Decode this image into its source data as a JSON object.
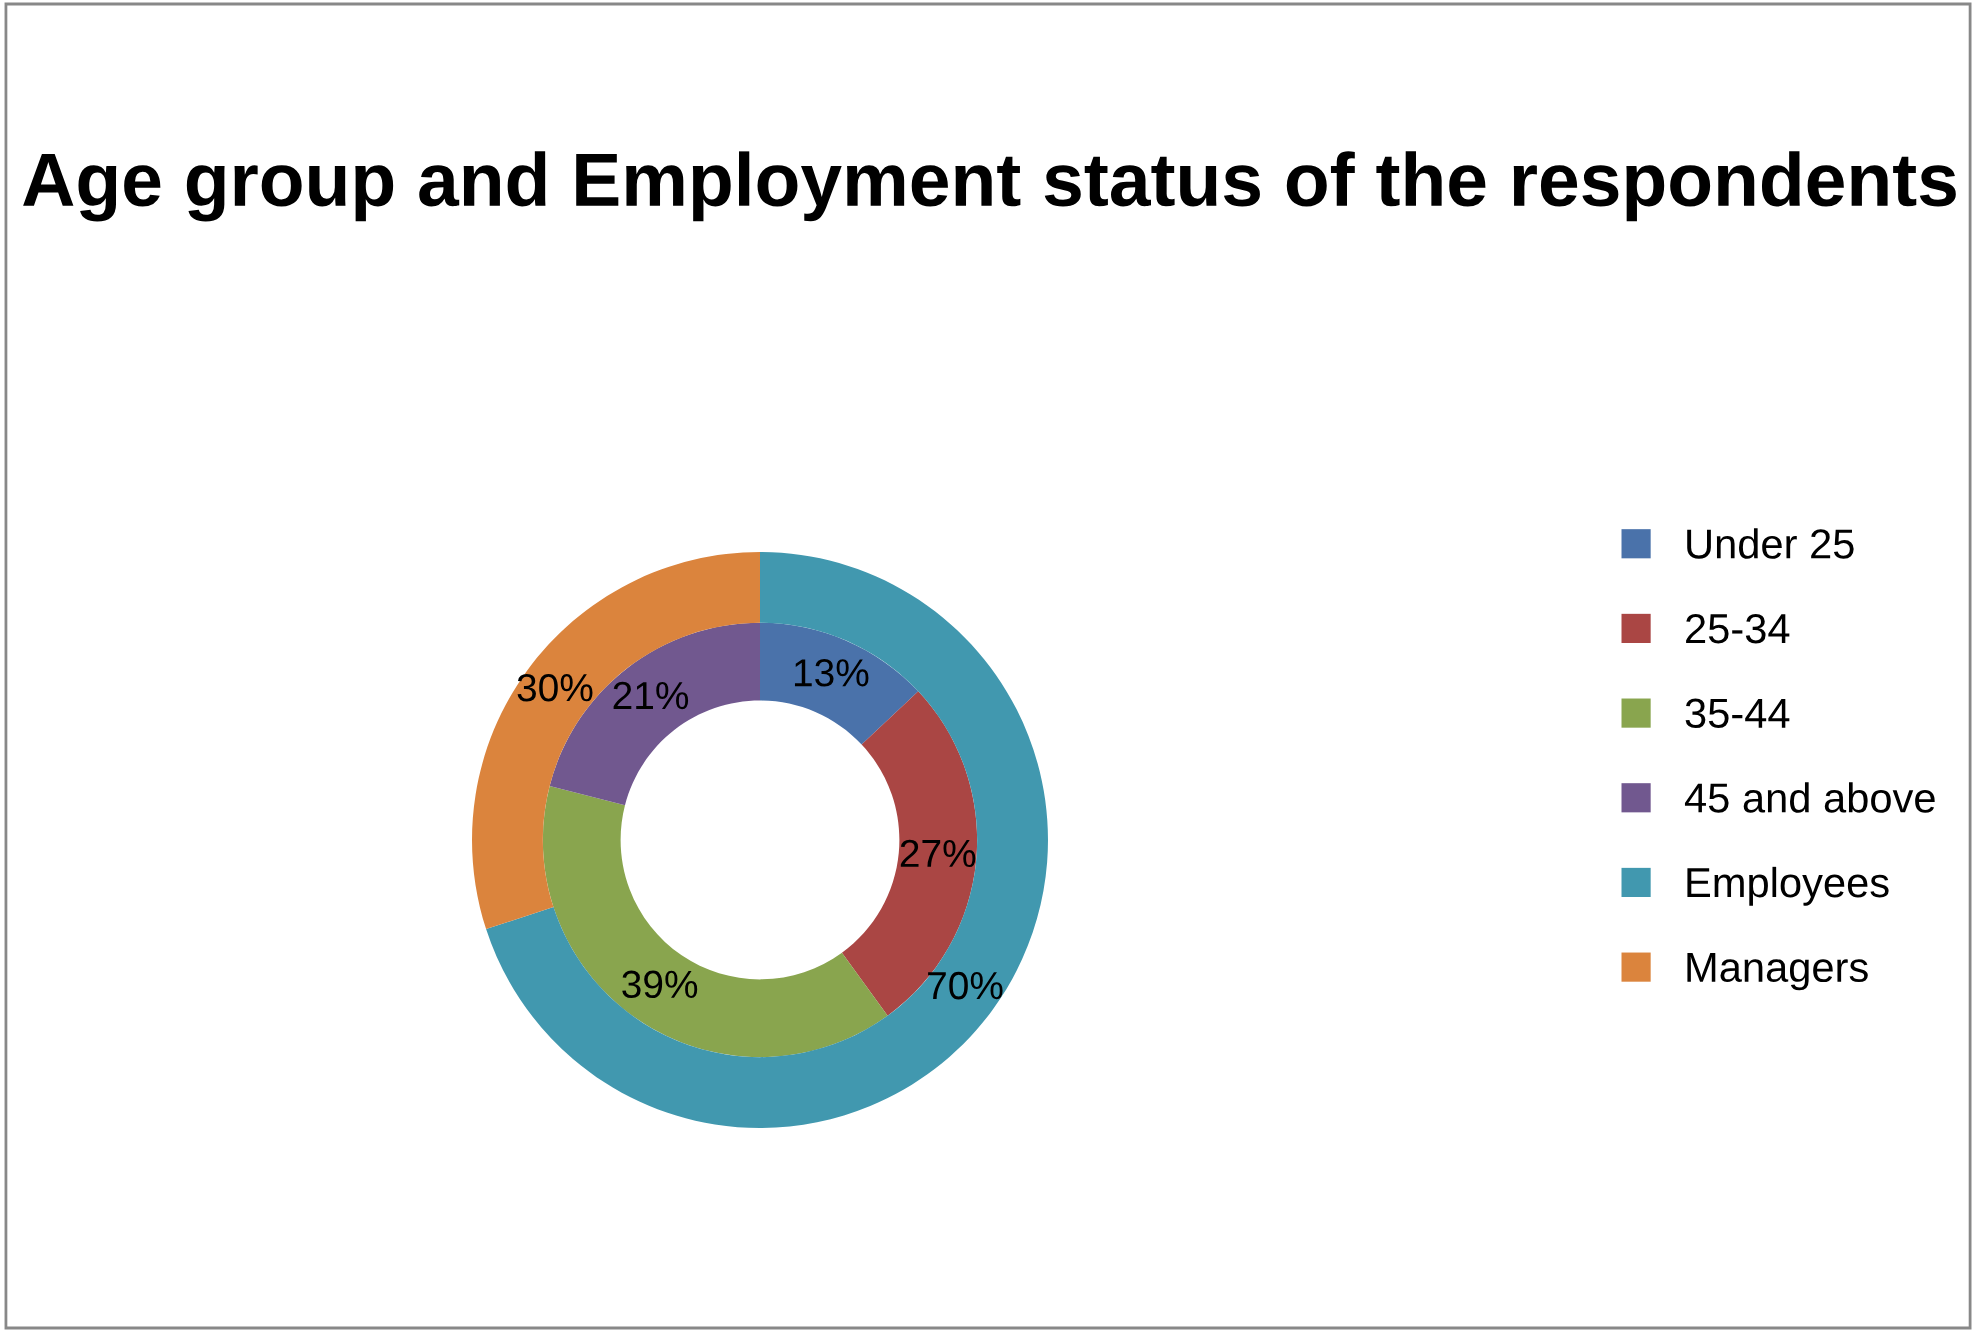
{
  "chart_data": {
    "type": "donut",
    "title": "Age group and Employment status of the respondents",
    "legend": "right",
    "categories": [
      "Under 25",
      "25-34",
      "35-44",
      "45 and above",
      "Employees",
      "Managers"
    ],
    "colors": [
      "#4a72aa",
      "#aa4644",
      "#89a54e",
      "#71588f",
      "#4198af",
      "#db843d"
    ],
    "series": [
      {
        "values": [
          13,
          27,
          39,
          21,
          null,
          null
        ],
        "value_labels": [
          "13%",
          "27%",
          "39%",
          "21%",
          null,
          null
        ]
      },
      {
        "values": [
          null,
          null,
          null,
          null,
          70,
          30
        ],
        "value_labels": [
          null,
          null,
          null,
          null,
          "70%",
          "30%"
        ]
      }
    ]
  }
}
